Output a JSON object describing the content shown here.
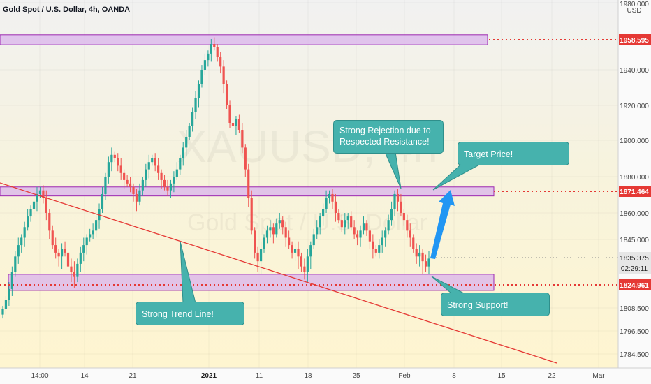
{
  "header": {
    "symbol_title": "Gold Spot / U.S. Dollar, 4h, OANDA"
  },
  "watermark": {
    "line1": "XAUUSD, 4h",
    "line2": "Gold Spot / U.S. Dollar"
  },
  "colors": {
    "up": "#26a69a",
    "down": "#ef5350",
    "zone_fill": "#d9b3ec",
    "zone_stroke": "#9c27b0",
    "trend_line": "#e53935",
    "level_line": "#e53935",
    "callout": "#46b2ad",
    "arrow": "#2196f3"
  },
  "chart_data": {
    "type": "candlestick",
    "title": "Gold Spot / U.S. Dollar, 4h, OANDA",
    "price_axis": {
      "unit_label": "USD",
      "ylim": [
        1780,
        1980
      ],
      "ticks": [
        "1980.000",
        "1940.000",
        "1920.000",
        "1900.000",
        "1880.000",
        "1860.000",
        "1845.000",
        "1808.500",
        "1796.500",
        "1784.500"
      ]
    },
    "time_axis": {
      "ticks": [
        "14:00",
        "14",
        "21",
        "2021",
        "11",
        "18",
        "25",
        "Feb",
        "8",
        "15",
        "22",
        "Mar"
      ]
    },
    "price_labels": [
      {
        "text": "1958.595",
        "value": 1958.595,
        "kind": "level"
      },
      {
        "text": "1871.464",
        "value": 1871.464,
        "kind": "level"
      },
      {
        "text": "1835.375",
        "value": 1835.375,
        "kind": "last"
      },
      {
        "text": "02:29:11",
        "value": 1833.0,
        "kind": "countdown"
      },
      {
        "text": "1824.961",
        "value": 1824.961,
        "kind": "level"
      }
    ],
    "zones": [
      {
        "name": "resistance-top",
        "low": 1955.5,
        "high": 1961.5
      },
      {
        "name": "resistance-mid",
        "low": 1869.0,
        "high": 1874.0
      },
      {
        "name": "support",
        "low": 1821.0,
        "high": 1829.0
      }
    ],
    "trend_line": {
      "from": {
        "date": "2020-12-04",
        "price": 1880
      },
      "to": {
        "date": "2021-02-27",
        "price": 1780
      }
    },
    "candles_close": [
      1808,
      1814,
      1822,
      1830,
      1836,
      1842,
      1846,
      1852,
      1858,
      1862,
      1866,
      1870,
      1872,
      1868,
      1860,
      1850,
      1842,
      1838,
      1836,
      1840,
      1838,
      1832,
      1830,
      1828,
      1833,
      1838,
      1842,
      1846,
      1848,
      1850,
      1856,
      1862,
      1870,
      1880,
      1888,
      1892,
      1890,
      1886,
      1882,
      1878,
      1876,
      1874,
      1870,
      1866,
      1872,
      1878,
      1884,
      1888,
      1890,
      1886,
      1882,
      1878,
      1874,
      1872,
      1876,
      1880,
      1884,
      1890,
      1896,
      1902,
      1908,
      1916,
      1924,
      1932,
      1940,
      1946,
      1950,
      1956,
      1954,
      1948,
      1942,
      1932,
      1920,
      1910,
      1908,
      1912,
      1906,
      1896,
      1884,
      1868,
      1850,
      1838,
      1834,
      1840,
      1846,
      1850,
      1852,
      1848,
      1854,
      1856,
      1852,
      1846,
      1842,
      1838,
      1840,
      1836,
      1832,
      1830,
      1836,
      1842,
      1848,
      1852,
      1858,
      1862,
      1868,
      1870,
      1866,
      1860,
      1856,
      1852,
      1856,
      1858,
      1852,
      1848,
      1846,
      1850,
      1854,
      1850,
      1844,
      1840,
      1838,
      1842,
      1846,
      1850,
      1856,
      1862,
      1870,
      1866,
      1860,
      1856,
      1850,
      1846,
      1840,
      1836,
      1838,
      1834,
      1832,
      1835
    ]
  },
  "callouts": [
    {
      "id": "rejection",
      "text": "Strong Rejection due to Respected Resistance!"
    },
    {
      "id": "target",
      "text": "Target Price!"
    },
    {
      "id": "trendline",
      "text": "Strong Trend Line!"
    },
    {
      "id": "support",
      "text": "Strong Support!"
    }
  ]
}
